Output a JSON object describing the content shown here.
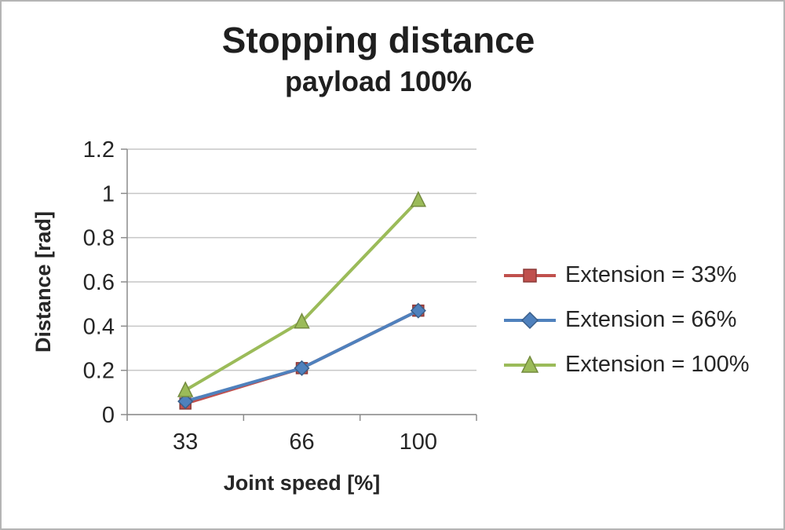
{
  "title": "Stopping distance",
  "subtitle": "payload 100%",
  "chart_data": {
    "type": "line",
    "title": "Stopping distance",
    "subtitle": "payload 100%",
    "categories": [
      "33",
      "66",
      "100"
    ],
    "x": [
      33,
      66,
      100
    ],
    "series": [
      {
        "name": "Extension = 33%",
        "marker": "square",
        "color": "#C0504D",
        "edge": "#8C3A38",
        "values": [
          0.05,
          0.21,
          0.47
        ]
      },
      {
        "name": "Extension = 66%",
        "marker": "diamond",
        "color": "#4F81BD",
        "edge": "#3A5F8A",
        "values": [
          0.06,
          0.21,
          0.47
        ]
      },
      {
        "name": "Extension = 100%",
        "marker": "triangle",
        "color": "#9BBB59",
        "edge": "#748B3F",
        "values": [
          0.11,
          0.42,
          0.97
        ]
      }
    ],
    "xlabel": "Joint speed [%]",
    "ylabel": "Distance [rad]",
    "ylim": [
      0,
      1.2
    ],
    "ytick_step": 0.2,
    "yticks": [
      "0",
      "0.2",
      "0.4",
      "0.6",
      "0.8",
      "1",
      "1.2"
    ],
    "grid": true,
    "legend_position": "right"
  },
  "colors": {
    "grid": "#c6c6c6",
    "axis": "#8c8c8c",
    "text": "#262626",
    "title": "#1f1f1f"
  }
}
